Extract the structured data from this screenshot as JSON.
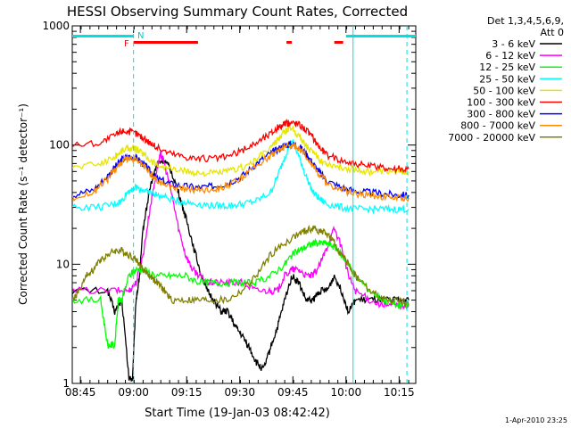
{
  "chart_data": {
    "type": "line",
    "title": "HESSI Observing Summary Count Rates, Corrected",
    "xlabel": "Start Time (19-Jan-03 08:42:42)",
    "ylabel": "Corrected Count Rate (s⁻¹ detector⁻¹)",
    "yscale": "log",
    "ylim": [
      1,
      1000
    ],
    "xlim_minutes_after_0842": [
      0,
      97
    ],
    "x_ticks": [
      "08:45",
      "09:00",
      "09:15",
      "09:30",
      "09:45",
      "10:00",
      "10:15"
    ],
    "x_tick_minutes": [
      2.3,
      17.3,
      32.3,
      47.3,
      62.3,
      77.3,
      92.3
    ],
    "y_ticks": [
      "1",
      "10",
      "100",
      "1000"
    ],
    "y_tick_values": [
      1,
      10,
      100,
      1000
    ],
    "legend_header": [
      "Det 1,3,4,5,6,9,",
      "Att 0"
    ],
    "legend_position": "right",
    "timestamp": "1-Apr-2010 23:25",
    "flag_labels": {
      "F": "F",
      "N": "N"
    },
    "vertical_markers_minutes": [
      17.3,
      79.3,
      94.5
    ],
    "series": [
      {
        "name": "3 - 6 keV",
        "color": "#000000",
        "points": [
          [
            0,
            6
          ],
          [
            10,
            6
          ],
          [
            12,
            4
          ],
          [
            14,
            5
          ],
          [
            16,
            1.1
          ],
          [
            17,
            1.1
          ],
          [
            18,
            5
          ],
          [
            19,
            8
          ],
          [
            20,
            20
          ],
          [
            22,
            45
          ],
          [
            24,
            70
          ],
          [
            26,
            75
          ],
          [
            28,
            60
          ],
          [
            30,
            40
          ],
          [
            32,
            25
          ],
          [
            34,
            15
          ],
          [
            36,
            9
          ],
          [
            38,
            6
          ],
          [
            40,
            5
          ],
          [
            42,
            4
          ],
          [
            44,
            4
          ],
          [
            46,
            3
          ],
          [
            48,
            2.5
          ],
          [
            50,
            2
          ],
          [
            52,
            1.5
          ],
          [
            54,
            1.3
          ],
          [
            56,
            2
          ],
          [
            58,
            3
          ],
          [
            60,
            5
          ],
          [
            62,
            8
          ],
          [
            64,
            7
          ],
          [
            66,
            5
          ],
          [
            68,
            5
          ],
          [
            70,
            6
          ],
          [
            72,
            6
          ],
          [
            74,
            8
          ],
          [
            76,
            6
          ],
          [
            78,
            4
          ],
          [
            80,
            5
          ],
          [
            84,
            5
          ],
          [
            88,
            5
          ],
          [
            92,
            5
          ],
          [
            95,
            5
          ]
        ]
      },
      {
        "name": "6 - 12 keV",
        "color": "#ff00ff",
        "points": [
          [
            0,
            6
          ],
          [
            12,
            6
          ],
          [
            16,
            6
          ],
          [
            18,
            7
          ],
          [
            20,
            12
          ],
          [
            22,
            30
          ],
          [
            24,
            65
          ],
          [
            25,
            85
          ],
          [
            26,
            70
          ],
          [
            28,
            40
          ],
          [
            30,
            20
          ],
          [
            32,
            12
          ],
          [
            34,
            9
          ],
          [
            36,
            8
          ],
          [
            38,
            7
          ],
          [
            40,
            7
          ],
          [
            44,
            7
          ],
          [
            48,
            7
          ],
          [
            52,
            6
          ],
          [
            56,
            6
          ],
          [
            58,
            6
          ],
          [
            60,
            8
          ],
          [
            62,
            9
          ],
          [
            64,
            9
          ],
          [
            66,
            8
          ],
          [
            68,
            8
          ],
          [
            70,
            10
          ],
          [
            72,
            14
          ],
          [
            74,
            20
          ],
          [
            76,
            14
          ],
          [
            78,
            8
          ],
          [
            80,
            6
          ],
          [
            84,
            5
          ],
          [
            88,
            4.5
          ],
          [
            92,
            4.5
          ],
          [
            95,
            4.5
          ]
        ]
      },
      {
        "name": "12 - 25 keV",
        "color": "#00ff00",
        "points": [
          [
            0,
            5
          ],
          [
            8,
            5
          ],
          [
            10,
            2.1
          ],
          [
            12,
            2.1
          ],
          [
            13,
            5
          ],
          [
            14,
            5
          ],
          [
            16,
            8
          ],
          [
            18,
            9
          ],
          [
            20,
            9
          ],
          [
            24,
            8
          ],
          [
            28,
            8
          ],
          [
            32,
            8
          ],
          [
            36,
            7
          ],
          [
            40,
            7
          ],
          [
            44,
            7
          ],
          [
            48,
            7
          ],
          [
            52,
            7
          ],
          [
            56,
            8
          ],
          [
            60,
            10
          ],
          [
            62,
            12
          ],
          [
            64,
            13
          ],
          [
            66,
            14
          ],
          [
            68,
            15
          ],
          [
            70,
            15
          ],
          [
            72,
            15
          ],
          [
            74,
            14
          ],
          [
            76,
            12
          ],
          [
            78,
            10
          ],
          [
            80,
            8
          ],
          [
            84,
            6
          ],
          [
            88,
            5
          ],
          [
            92,
            4.5
          ],
          [
            95,
            4.5
          ]
        ]
      },
      {
        "name": "25 - 50 keV",
        "color": "#00ffff",
        "points": [
          [
            0,
            30
          ],
          [
            8,
            30
          ],
          [
            12,
            32
          ],
          [
            14,
            34
          ],
          [
            16,
            42
          ],
          [
            18,
            44
          ],
          [
            20,
            42
          ],
          [
            22,
            40
          ],
          [
            24,
            38
          ],
          [
            28,
            35
          ],
          [
            32,
            33
          ],
          [
            36,
            32
          ],
          [
            40,
            31
          ],
          [
            44,
            31
          ],
          [
            48,
            32
          ],
          [
            52,
            34
          ],
          [
            56,
            40
          ],
          [
            58,
            55
          ],
          [
            60,
            80
          ],
          [
            62,
            110
          ],
          [
            64,
            80
          ],
          [
            66,
            55
          ],
          [
            68,
            40
          ],
          [
            70,
            35
          ],
          [
            72,
            32
          ],
          [
            76,
            30
          ],
          [
            80,
            29
          ],
          [
            84,
            29
          ],
          [
            88,
            29
          ],
          [
            92,
            29
          ],
          [
            95,
            29
          ]
        ]
      },
      {
        "name": "50 - 100 keV",
        "color": "#e6e600",
        "points": [
          [
            0,
            65
          ],
          [
            8,
            70
          ],
          [
            12,
            80
          ],
          [
            14,
            90
          ],
          [
            16,
            95
          ],
          [
            18,
            92
          ],
          [
            20,
            85
          ],
          [
            22,
            75
          ],
          [
            24,
            68
          ],
          [
            28,
            63
          ],
          [
            32,
            60
          ],
          [
            36,
            58
          ],
          [
            40,
            58
          ],
          [
            44,
            60
          ],
          [
            48,
            65
          ],
          [
            52,
            75
          ],
          [
            56,
            95
          ],
          [
            58,
            110
          ],
          [
            60,
            130
          ],
          [
            62,
            140
          ],
          [
            64,
            120
          ],
          [
            66,
            100
          ],
          [
            68,
            85
          ],
          [
            70,
            75
          ],
          [
            72,
            70
          ],
          [
            76,
            65
          ],
          [
            80,
            62
          ],
          [
            84,
            60
          ],
          [
            88,
            60
          ],
          [
            92,
            60
          ],
          [
            95,
            60
          ]
        ]
      },
      {
        "name": "100 - 300 keV",
        "color": "#ff0000",
        "points": [
          [
            0,
            100
          ],
          [
            8,
            105
          ],
          [
            12,
            120
          ],
          [
            14,
            132
          ],
          [
            16,
            130
          ],
          [
            18,
            125
          ],
          [
            20,
            115
          ],
          [
            22,
            105
          ],
          [
            24,
            95
          ],
          [
            28,
            85
          ],
          [
            32,
            80
          ],
          [
            36,
            77
          ],
          [
            40,
            77
          ],
          [
            44,
            80
          ],
          [
            48,
            90
          ],
          [
            52,
            105
          ],
          [
            56,
            125
          ],
          [
            58,
            140
          ],
          [
            60,
            150
          ],
          [
            62,
            155
          ],
          [
            64,
            150
          ],
          [
            66,
            135
          ],
          [
            68,
            115
          ],
          [
            70,
            95
          ],
          [
            72,
            82
          ],
          [
            76,
            75
          ],
          [
            80,
            70
          ],
          [
            84,
            66
          ],
          [
            88,
            65
          ],
          [
            92,
            63
          ],
          [
            95,
            63
          ]
        ]
      },
      {
        "name": "300 - 800 keV",
        "color": "#0000ff",
        "points": [
          [
            0,
            38
          ],
          [
            6,
            42
          ],
          [
            10,
            55
          ],
          [
            12,
            65
          ],
          [
            14,
            75
          ],
          [
            16,
            80
          ],
          [
            18,
            78
          ],
          [
            20,
            70
          ],
          [
            22,
            60
          ],
          [
            24,
            52
          ],
          [
            28,
            47
          ],
          [
            32,
            45
          ],
          [
            36,
            44
          ],
          [
            40,
            45
          ],
          [
            44,
            48
          ],
          [
            48,
            55
          ],
          [
            52,
            70
          ],
          [
            56,
            85
          ],
          [
            58,
            92
          ],
          [
            60,
            100
          ],
          [
            62,
            102
          ],
          [
            64,
            98
          ],
          [
            66,
            85
          ],
          [
            68,
            70
          ],
          [
            70,
            58
          ],
          [
            72,
            50
          ],
          [
            76,
            44
          ],
          [
            80,
            41
          ],
          [
            84,
            40
          ],
          [
            88,
            39
          ],
          [
            92,
            38
          ],
          [
            95,
            38
          ]
        ]
      },
      {
        "name": "800 - 7000 keV",
        "color": "#ff8c00",
        "points": [
          [
            0,
            36
          ],
          [
            6,
            40
          ],
          [
            10,
            52
          ],
          [
            12,
            62
          ],
          [
            14,
            72
          ],
          [
            16,
            77
          ],
          [
            18,
            75
          ],
          [
            20,
            67
          ],
          [
            22,
            58
          ],
          [
            24,
            50
          ],
          [
            28,
            45
          ],
          [
            32,
            43
          ],
          [
            36,
            42
          ],
          [
            40,
            43
          ],
          [
            44,
            46
          ],
          [
            48,
            53
          ],
          [
            52,
            67
          ],
          [
            56,
            82
          ],
          [
            58,
            90
          ],
          [
            60,
            97
          ],
          [
            62,
            99
          ],
          [
            64,
            95
          ],
          [
            66,
            82
          ],
          [
            68,
            67
          ],
          [
            70,
            56
          ],
          [
            72,
            48
          ],
          [
            76,
            42
          ],
          [
            80,
            39
          ],
          [
            84,
            38
          ],
          [
            88,
            37
          ],
          [
            92,
            36
          ],
          [
            95,
            36
          ]
        ]
      },
      {
        "name": "7000 - 20000 keV",
        "color": "#808000",
        "points": [
          [
            0,
            5
          ],
          [
            2,
            6
          ],
          [
            4,
            8
          ],
          [
            6,
            9
          ],
          [
            8,
            11
          ],
          [
            10,
            12
          ],
          [
            12,
            13
          ],
          [
            14,
            13
          ],
          [
            16,
            12
          ],
          [
            18,
            11
          ],
          [
            20,
            9
          ],
          [
            22,
            8
          ],
          [
            24,
            7
          ],
          [
            26,
            6
          ],
          [
            28,
            5
          ],
          [
            32,
            5
          ],
          [
            36,
            5
          ],
          [
            40,
            5
          ],
          [
            44,
            5
          ],
          [
            48,
            6
          ],
          [
            52,
            8
          ],
          [
            56,
            12
          ],
          [
            60,
            15
          ],
          [
            64,
            18
          ],
          [
            66,
            19
          ],
          [
            68,
            20
          ],
          [
            70,
            19
          ],
          [
            72,
            18
          ],
          [
            74,
            15
          ],
          [
            76,
            12
          ],
          [
            78,
            10
          ],
          [
            80,
            8
          ],
          [
            84,
            6
          ],
          [
            88,
            5
          ],
          [
            92,
            5
          ],
          [
            95,
            4.5
          ]
        ]
      }
    ]
  }
}
